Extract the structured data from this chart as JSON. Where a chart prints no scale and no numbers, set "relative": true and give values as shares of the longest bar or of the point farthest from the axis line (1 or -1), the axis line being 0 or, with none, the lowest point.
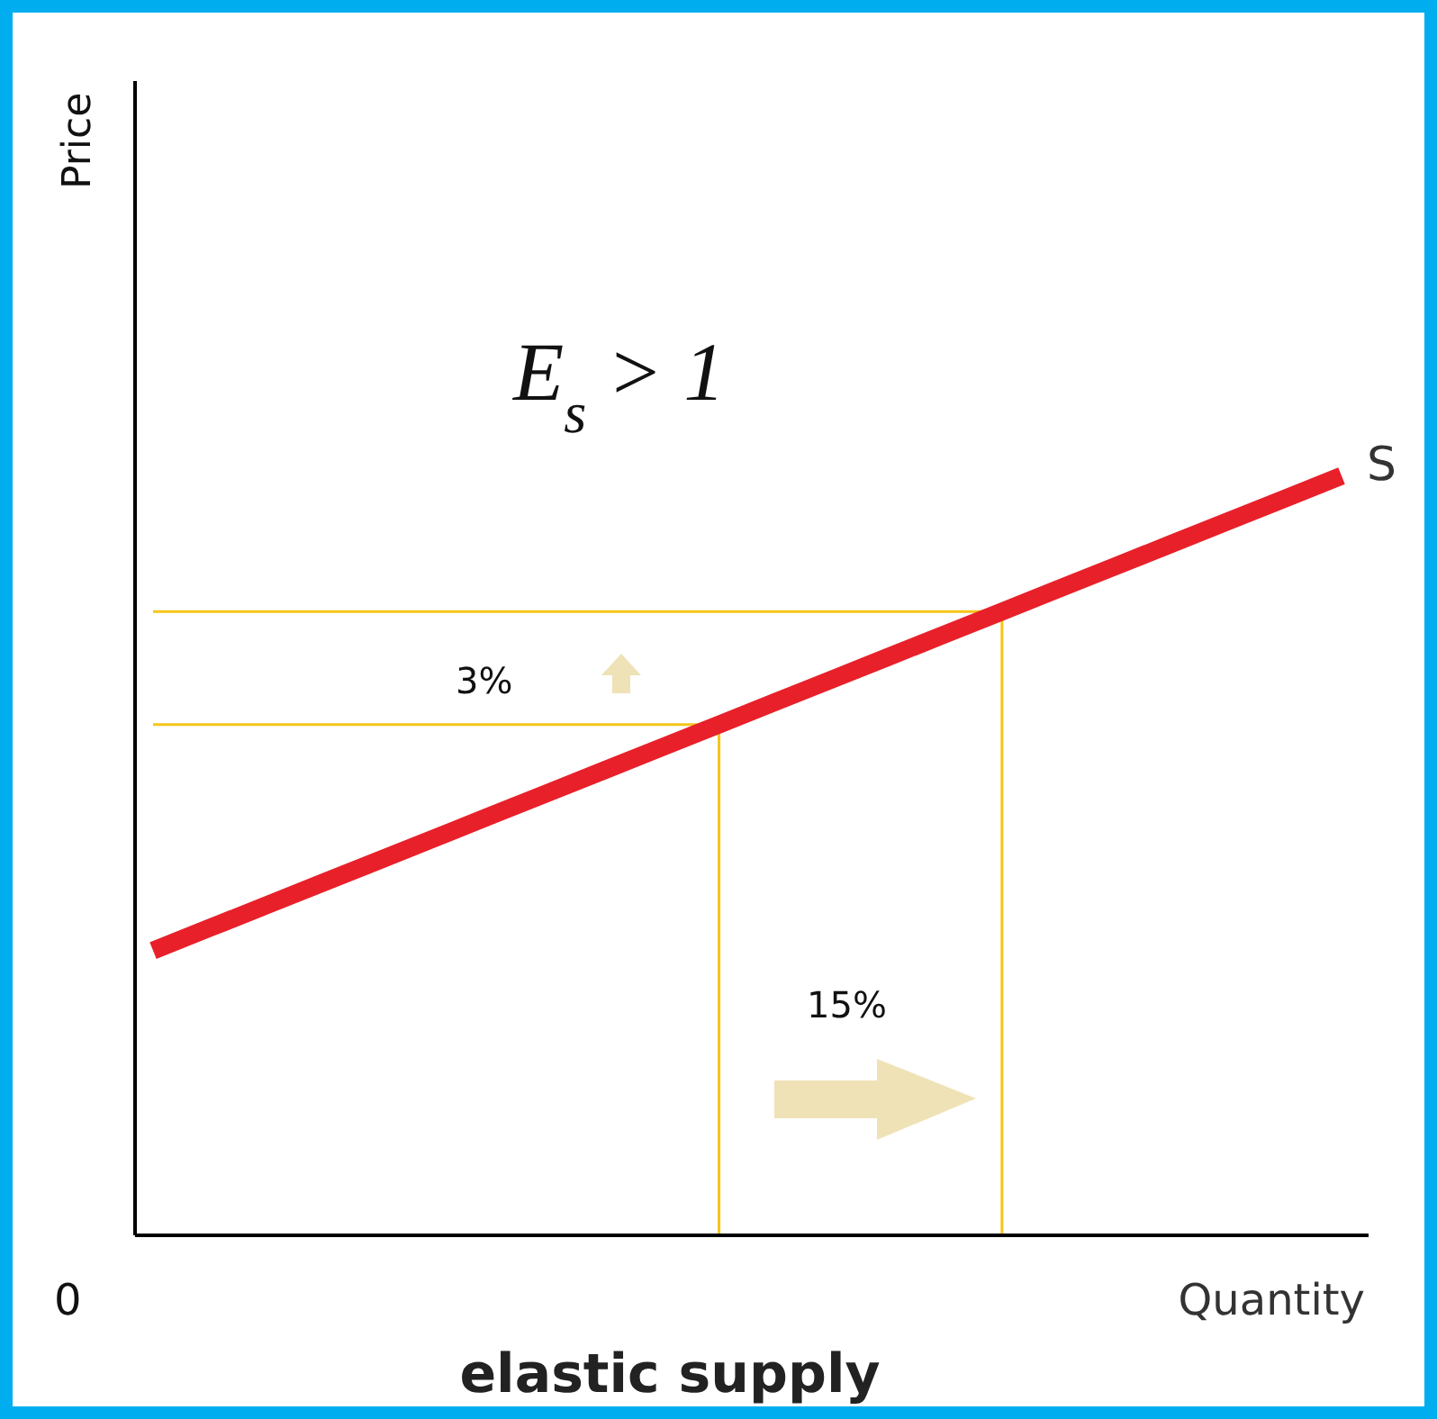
{
  "chart_data": {
    "type": "line",
    "title": "elastic supply",
    "xlabel": "Quantity",
    "relative": true,
    "categories": [
      null,
      null,
      null,
      null,
      null,
      null,
      null,
      null,
      null,
      null,
      null,
      null,
      null,
      null,
      null,
      null,
      null,
      null,
      null,
      null,
      null,
      null
    ],
    "series": [
      {
        "name": "S",
        "color": "#e8202a",
        "values": [
          0.375,
          0.4048,
          0.4345,
          0.4643,
          0.494,
          0.5238,
          0.5536,
          0.5833,
          0.6131,
          0.6429,
          0.6726,
          0.7024,
          0.7321,
          0.7619,
          0.7917,
          0.8214,
          0.8512,
          0.881,
          0.9107,
          0.9405,
          0.9702,
          1
        ]
      }
    ],
    "ref_lines": [
      {
        "axis": "y",
        "value": 0.6726,
        "color": "#f5c518"
      },
      {
        "axis": "y",
        "value": 0.8214,
        "color": "#f5c518"
      }
    ],
    "annotations": [
      "E$_{s}$ > 1",
      "3%",
      "15%",
      "0",
      "Price"
    ],
    "grid": false,
    "legend": false,
    "marker": "none",
    "line_style": "solid"
  }
}
